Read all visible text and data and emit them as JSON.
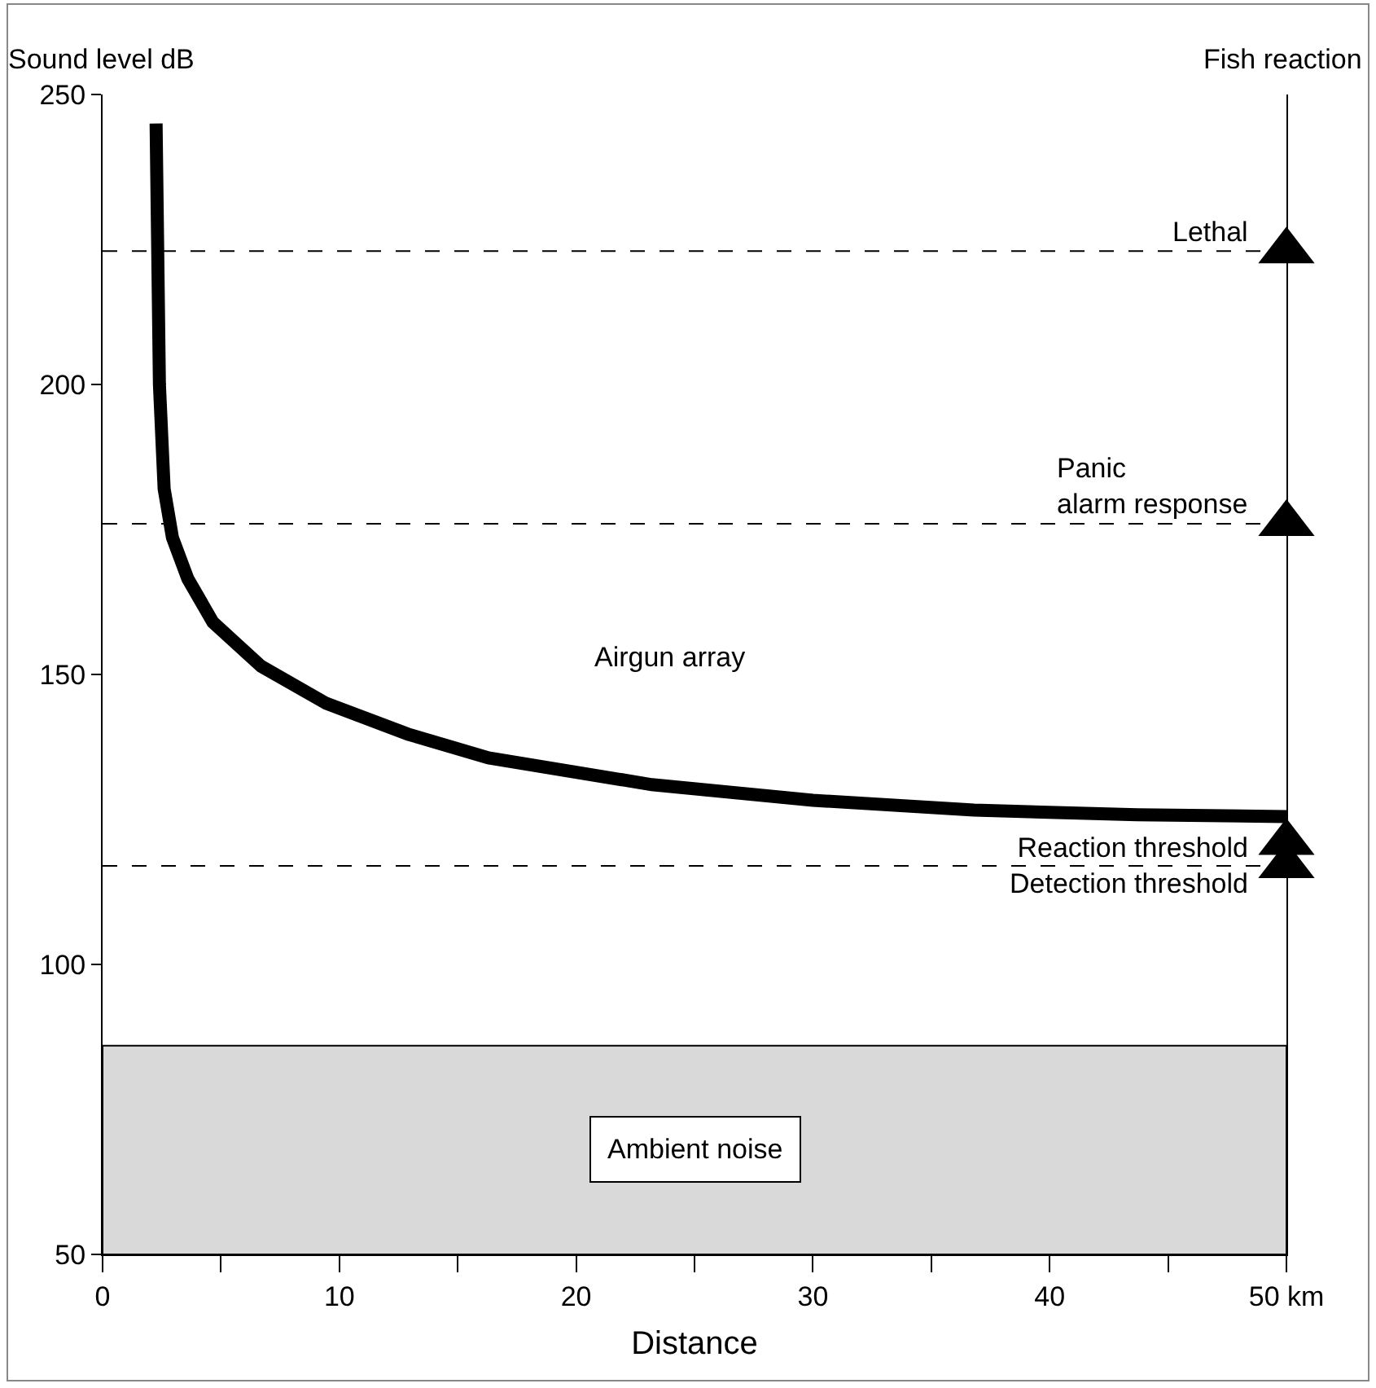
{
  "chart_data": {
    "type": "line",
    "ylabel": "Sound level dB",
    "y2label": "Fish reaction",
    "xlabel": "Distance",
    "xlim": [
      0,
      50
    ],
    "ylim": [
      50,
      250
    ],
    "xticks": [
      0,
      {
        "value": 5,
        "label": null
      },
      10,
      {
        "value": 15,
        "label": null
      },
      20,
      {
        "value": 25,
        "label": null
      },
      30,
      {
        "value": 35,
        "label": null
      },
      40,
      {
        "value": 45,
        "label": null
      },
      {
        "value": 50,
        "label": "50 km"
      }
    ],
    "yticks": [
      50,
      100,
      150,
      200,
      250
    ],
    "grid": false,
    "series": [
      {
        "color": "#000000",
        "line_style": "solid",
        "marker": "none",
        "x": [
          2.26,
          2.4,
          2.6,
          2.95,
          3.6,
          4.66,
          6.7,
          9.45,
          12.9,
          16.3,
          23.2,
          30,
          36.8,
          43.7,
          50
        ],
        "values": [
          245,
          200,
          182,
          173.6,
          166.5,
          159,
          151.4,
          145,
          139.7,
          135.6,
          131,
          128.3,
          126.6,
          125.8,
          125.5
        ]
      },
      {
        "type": "scatter",
        "color": "#000000",
        "marker": "triangle",
        "x": [
          50,
          50,
          50,
          50
        ],
        "values": [
          223,
          176,
          121,
          117
        ]
      }
    ],
    "ref_lines": [
      {
        "axis": "y",
        "value": 223,
        "label": "Lethal",
        "line_style": "dashed",
        "color": "#000000"
      },
      {
        "axis": "y",
        "value": 176,
        "label": "Panic\nalarm response",
        "line_style": "dashed",
        "color": "#000000"
      },
      {
        "axis": "y",
        "value": 117,
        "label": "Reaction threshold\nDetection threshold",
        "line_style": "dashed",
        "color": "#000000"
      }
    ],
    "bands": [
      {
        "axis": "y",
        "from": 50,
        "to": 86,
        "label": "Ambient noise",
        "color": "#d9d9d9"
      }
    ],
    "annotations": [
      "Airgun array"
    ]
  }
}
